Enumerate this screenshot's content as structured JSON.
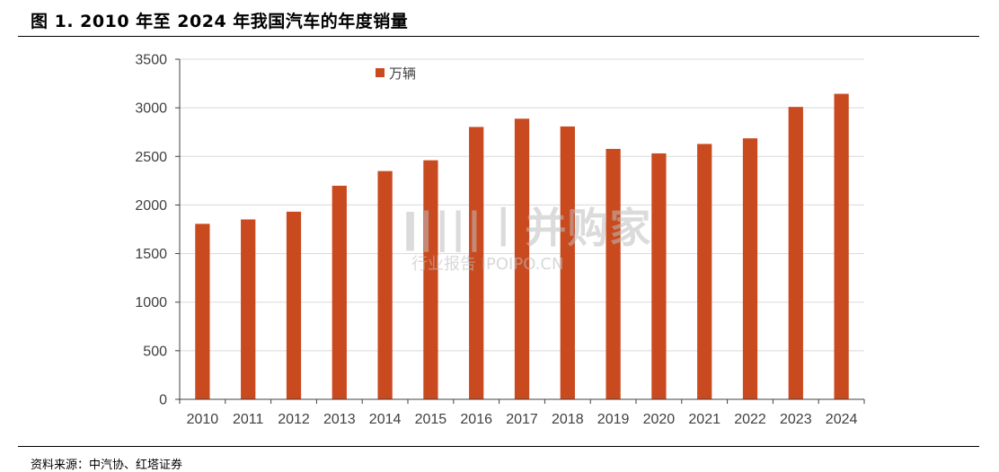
{
  "figure": {
    "title": "图 1. 2010 年至 2024 年我国汽车的年度销量",
    "source": "资料来源：中汽协、红塔证券"
  },
  "watermark": {
    "main": "ǀ||||丨并购家",
    "sub": "行业报告 IPOIPO.CN"
  },
  "colors": {
    "bar": "#C94A1F",
    "grid": "#D9D9D9",
    "axis": "#404040"
  },
  "chart_data": {
    "type": "bar",
    "title": "",
    "xlabel": "",
    "ylabel": "",
    "categories": [
      "2010",
      "2011",
      "2012",
      "2013",
      "2014",
      "2015",
      "2016",
      "2017",
      "2018",
      "2019",
      "2020",
      "2021",
      "2022",
      "2023",
      "2024"
    ],
    "series": [
      {
        "name": "万辆",
        "values": [
          1806,
          1851,
          1931,
          2198,
          2349,
          2460,
          2803,
          2888,
          2808,
          2577,
          2531,
          2628,
          2686,
          3009,
          3144
        ]
      }
    ],
    "ylim": [
      0,
      3500
    ],
    "yticks": [
      0,
      500,
      1000,
      1500,
      2000,
      2500,
      3000,
      3500
    ],
    "grid": true,
    "legend_position": "top-left"
  }
}
